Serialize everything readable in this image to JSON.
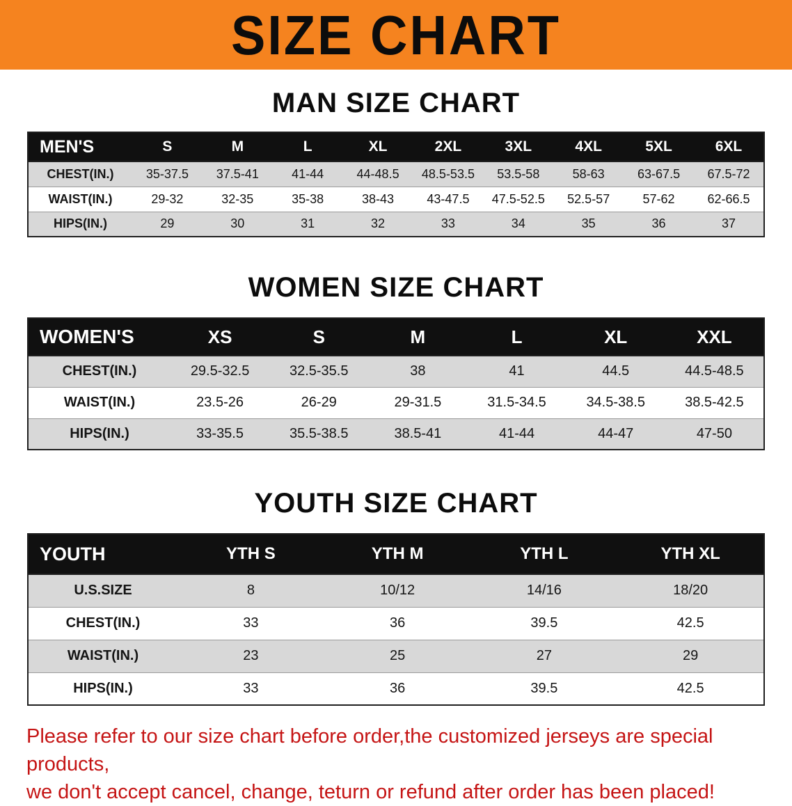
{
  "banner": {
    "title": "SIZE CHART"
  },
  "colors": {
    "banner_bg": "#f5831f",
    "table_header_bg": "#101010",
    "alt_row_bg": "#d8d8d8",
    "notice_red": "#c51414"
  },
  "sections": [
    {
      "id": "men",
      "heading": "MAN SIZE CHART",
      "table": {
        "header": [
          "MEN'S",
          "S",
          "M",
          "L",
          "XL",
          "2XL",
          "3XL",
          "4XL",
          "5XL",
          "6XL"
        ],
        "rows": [
          [
            "CHEST(IN.)",
            "35-37.5",
            "37.5-41",
            "41-44",
            "44-48.5",
            "48.5-53.5",
            "53.5-58",
            "58-63",
            "63-67.5",
            "67.5-72"
          ],
          [
            "WAIST(IN.)",
            "29-32",
            "32-35",
            "35-38",
            "38-43",
            "43-47.5",
            "47.5-52.5",
            "52.5-57",
            "57-62",
            "62-66.5"
          ],
          [
            "HIPS(IN.)",
            "29",
            "30",
            "31",
            "32",
            "33",
            "34",
            "35",
            "36",
            "37"
          ]
        ]
      }
    },
    {
      "id": "women",
      "heading": "WOMEN SIZE CHART",
      "table": {
        "header": [
          "WOMEN'S",
          "XS",
          "S",
          "M",
          "L",
          "XL",
          "XXL"
        ],
        "rows": [
          [
            "CHEST(IN.)",
            "29.5-32.5",
            "32.5-35.5",
            "38",
            "41",
            "44.5",
            "44.5-48.5"
          ],
          [
            "WAIST(IN.)",
            "23.5-26",
            "26-29",
            "29-31.5",
            "31.5-34.5",
            "34.5-38.5",
            "38.5-42.5"
          ],
          [
            "HIPS(IN.)",
            "33-35.5",
            "35.5-38.5",
            "38.5-41",
            "41-44",
            "44-47",
            "47-50"
          ]
        ]
      }
    },
    {
      "id": "youth",
      "heading": "YOUTH SIZE CHART",
      "table": {
        "header": [
          "YOUTH",
          "YTH S",
          "YTH M",
          "YTH L",
          "YTH XL"
        ],
        "rows": [
          [
            "U.S.SIZE",
            "8",
            "10/12",
            "14/16",
            "18/20"
          ],
          [
            "CHEST(IN.)",
            "33",
            "36",
            "39.5",
            "42.5"
          ],
          [
            "WAIST(IN.)",
            "23",
            "25",
            "27",
            "29"
          ],
          [
            "HIPS(IN.)",
            "33",
            "36",
            "39.5",
            "42.5"
          ]
        ]
      }
    }
  ],
  "notice": {
    "line1": "Please refer to our size chart before order,the customized jerseys are special products,",
    "line2": "we don't accept cancel, change, teturn or refund after order has been placed!"
  }
}
